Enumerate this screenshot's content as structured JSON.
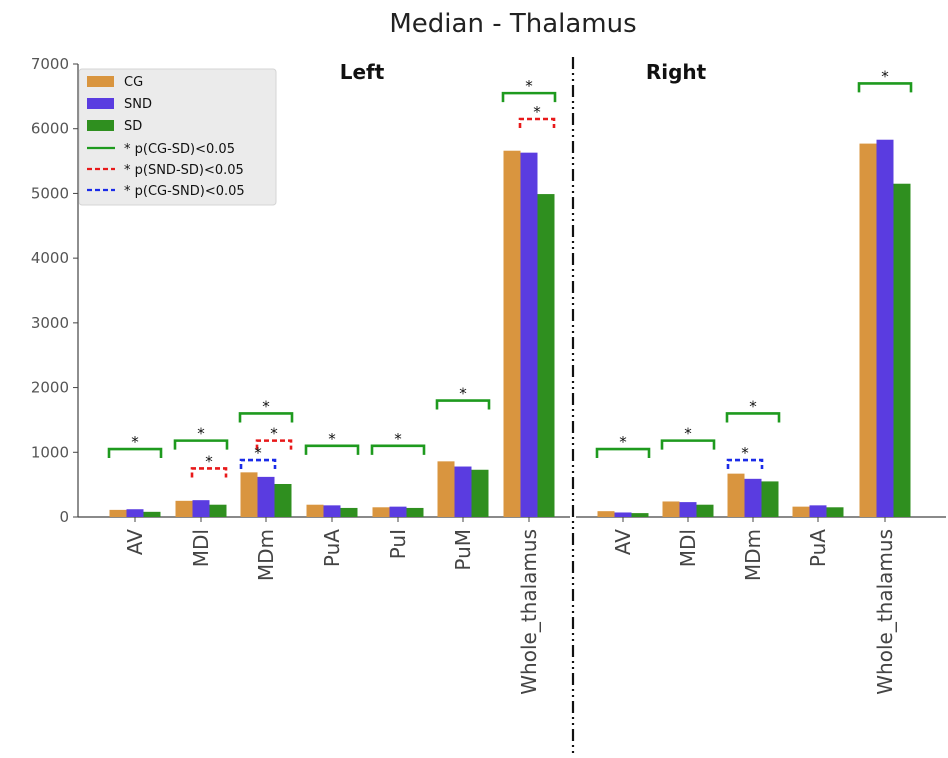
{
  "chart_data": {
    "type": "bar",
    "title": "Median - Thalamus",
    "ylim": [
      0,
      7000
    ],
    "yticks": [
      0,
      1000,
      2000,
      3000,
      4000,
      5000,
      6000,
      7000
    ],
    "legend_placement": "top-left",
    "colors": {
      "CG": "#D9953F",
      "SND": "#5A3CE0",
      "SD": "#2F8F1F",
      "bracket_CG_SD": "#1E9A1E",
      "bracket_SND_SD": "#E8191A",
      "bracket_CG_SND": "#1A2BE8"
    },
    "legend": {
      "series": [
        "CG",
        "SND",
        "SD"
      ],
      "lines": [
        {
          "label": "* p(CG-SD)<0.05",
          "style": "solid",
          "color": "#1E9A1E"
        },
        {
          "label": "* p(SND-SD)<0.05",
          "style": "dashed",
          "color": "#E8191A"
        },
        {
          "label": "* p(CG-SND)<0.05",
          "style": "dashed",
          "color": "#1A2BE8"
        }
      ]
    },
    "panels": [
      {
        "title": "Left",
        "categories": [
          "AV",
          "MDl",
          "MDm",
          "PuA",
          "PuI",
          "PuM",
          "Whole_thalamus"
        ],
        "series": [
          {
            "name": "CG",
            "values": [
              110,
              250,
              690,
              190,
              150,
              860,
              5660
            ]
          },
          {
            "name": "SND",
            "values": [
              120,
              260,
              620,
              180,
              160,
              780,
              5630
            ]
          },
          {
            "name": "SD",
            "values": [
              80,
              190,
              510,
              140,
              140,
              730,
              4990
            ]
          }
        ],
        "brackets": [
          {
            "category": 0,
            "type": "CG-SD",
            "value": 1050,
            "label": "*"
          },
          {
            "category": 1,
            "type": "CG-SD",
            "value": 1180,
            "label": "*"
          },
          {
            "category": 1,
            "type": "SND-SD",
            "value": 750,
            "label": "*"
          },
          {
            "category": 2,
            "type": "CG-SD",
            "value": 1600,
            "label": "*"
          },
          {
            "category": 2,
            "type": "SND-SD",
            "value": 1180,
            "label": "*"
          },
          {
            "category": 2,
            "type": "CG-SND",
            "value": 880,
            "label": "*"
          },
          {
            "category": 3,
            "type": "CG-SD",
            "value": 1100,
            "label": "*"
          },
          {
            "category": 4,
            "type": "CG-SD",
            "value": 1100,
            "label": "*"
          },
          {
            "category": 5,
            "type": "CG-SD",
            "value": 1800,
            "label": "*"
          },
          {
            "category": 6,
            "type": "CG-SD",
            "value": 6550,
            "label": "*"
          },
          {
            "category": 6,
            "type": "SND-SD",
            "value": 6150,
            "label": "*"
          }
        ]
      },
      {
        "title": "Right",
        "categories": [
          "AV",
          "MDl",
          "MDm",
          "PuA",
          "Whole_thalamus"
        ],
        "series": [
          {
            "name": "CG",
            "values": [
              90,
              240,
              670,
              160,
              5770
            ]
          },
          {
            "name": "SND",
            "values": [
              70,
              230,
              590,
              180,
              5830
            ]
          },
          {
            "name": "SD",
            "values": [
              60,
              190,
              550,
              150,
              5150
            ]
          }
        ],
        "brackets": [
          {
            "category": 0,
            "type": "CG-SD",
            "value": 1050,
            "label": "*"
          },
          {
            "category": 1,
            "type": "CG-SD",
            "value": 1180,
            "label": "*"
          },
          {
            "category": 2,
            "type": "CG-SD",
            "value": 1600,
            "label": "*"
          },
          {
            "category": 2,
            "type": "CG-SND",
            "value": 880,
            "label": "*"
          },
          {
            "category": 4,
            "type": "CG-SD",
            "value": 6700,
            "label": "*"
          }
        ]
      }
    ]
  }
}
